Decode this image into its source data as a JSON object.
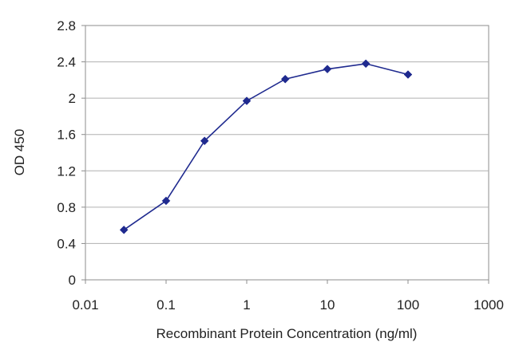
{
  "chart_data": {
    "type": "line",
    "xlabel": "Recombinant Protein Concentration (ng/ml)",
    "ylabel": "OD 450",
    "x_scale": "log",
    "xlim": [
      0.01,
      1000
    ],
    "ylim": [
      0,
      2.8
    ],
    "x_ticks": [
      "0.01",
      "0.1",
      "1",
      "10",
      "100",
      "1000"
    ],
    "y_ticks": [
      "0",
      "0.4",
      "0.8",
      "1.2",
      "1.6",
      "2",
      "2.4",
      "2.8"
    ],
    "grid": "horizontal",
    "legend": "none",
    "series": [
      {
        "x": [
          0.03,
          0.1,
          0.3,
          1,
          3,
          10,
          30,
          100
        ],
        "y": [
          0.55,
          0.87,
          1.53,
          1.97,
          2.21,
          2.32,
          2.38,
          2.26
        ],
        "color": "#1f2a8f"
      }
    ]
  }
}
